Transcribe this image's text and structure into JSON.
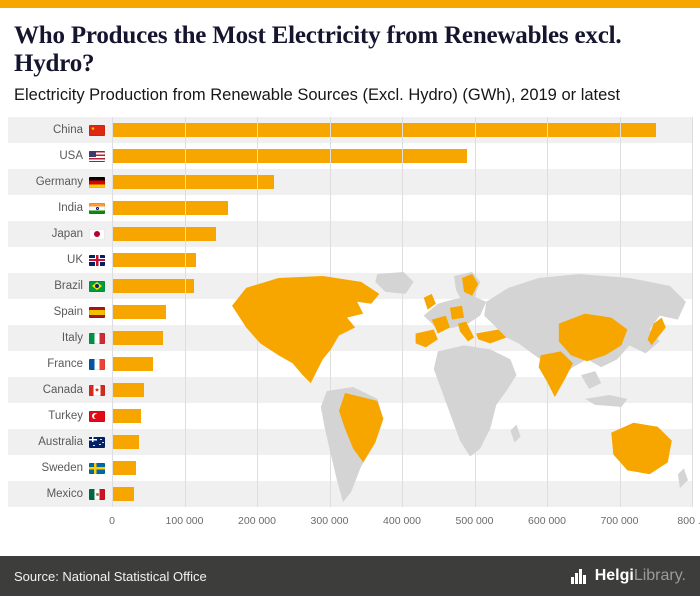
{
  "page": {
    "title": "Who Produces the Most Electricity from Renewables excl. Hydro?",
    "subtitle": "Electricity Production from Renewable Sources (Excl. Hydro) (GWh), 2019 or latest",
    "accent_color": "#F7A600",
    "footer": {
      "source": "Source: National Statistical Office",
      "brand": "Helgi",
      "brand_suffix": "Library."
    }
  },
  "chart_data": {
    "type": "bar",
    "orientation": "horizontal",
    "title": "Who Produces the Most Electricity from Renewables excl. Hydro?",
    "subtitle": "Electricity Production from Renewable Sources (Excl. Hydro) (GWh), 2019 or latest",
    "unit": "GWh",
    "categories": [
      "China",
      "USA",
      "Germany",
      "India",
      "Japan",
      "UK",
      "Brazil",
      "Spain",
      "Italy",
      "France",
      "Canada",
      "Turkey",
      "Australia",
      "Sweden",
      "Mexico"
    ],
    "flags": [
      "cn",
      "us",
      "de",
      "in",
      "jp",
      "gb",
      "br",
      "es",
      "it",
      "fr",
      "ca",
      "tr",
      "au",
      "se",
      "mx"
    ],
    "values": [
      750000,
      490000,
      224000,
      160000,
      144000,
      116000,
      113000,
      74000,
      70000,
      57000,
      44000,
      40000,
      37000,
      33000,
      30000
    ],
    "x_ticks": [
      "0",
      "100 000",
      "200 000",
      "300 000",
      "400 000",
      "500 000",
      "600 000",
      "700 000",
      "800 ..."
    ],
    "xlim": [
      0,
      800000
    ],
    "bar_color": "#F7A600",
    "grid": true,
    "legend": "none",
    "row_stripe_color": "#F0F0F0",
    "map_base_color": "#D4D4D4",
    "map_highlight_color": "#F7A600"
  }
}
